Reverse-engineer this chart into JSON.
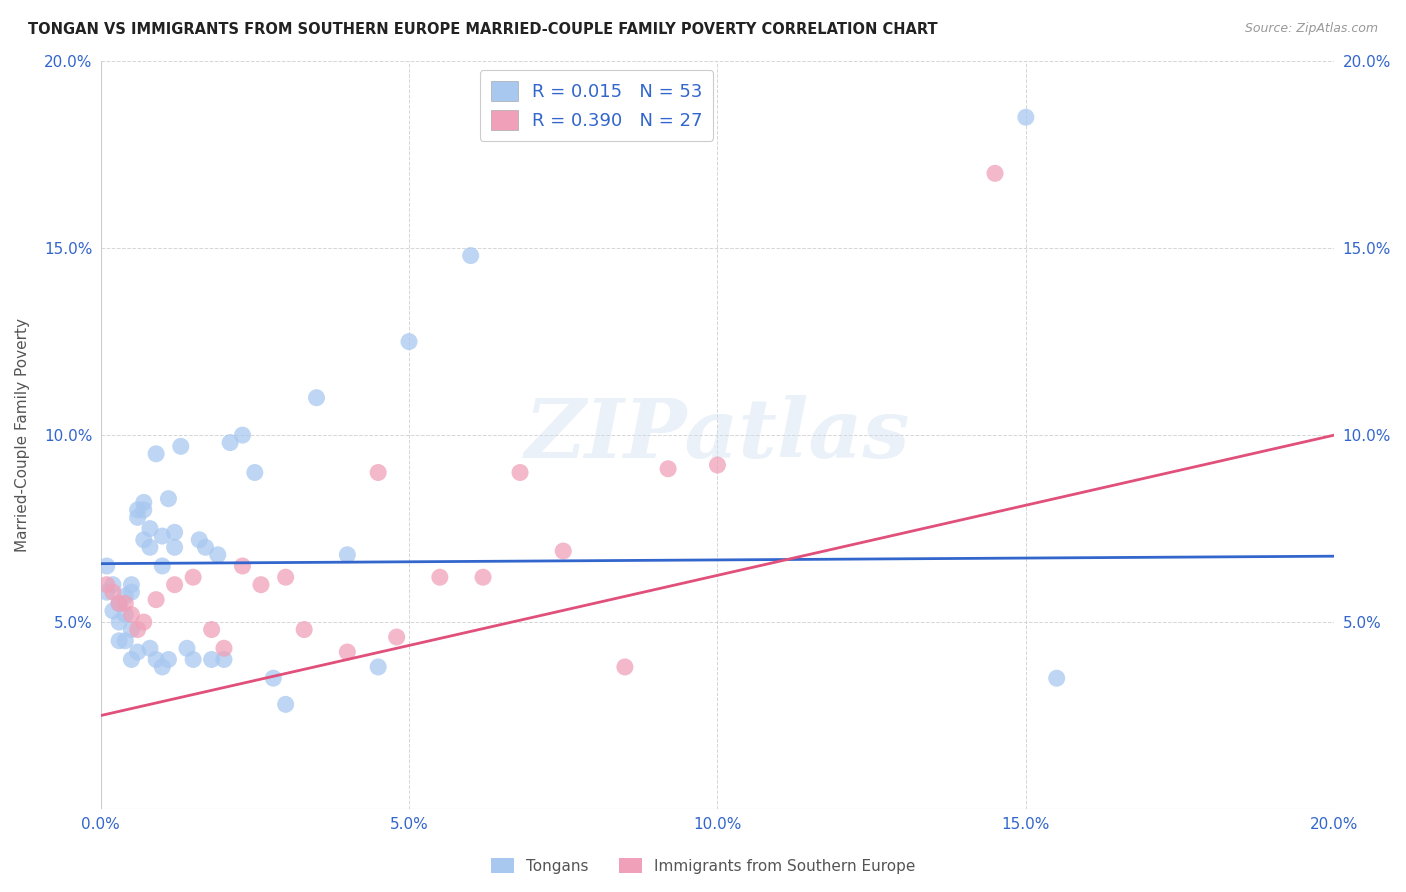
{
  "title": "TONGAN VS IMMIGRANTS FROM SOUTHERN EUROPE MARRIED-COUPLE FAMILY POVERTY CORRELATION CHART",
  "source": "Source: ZipAtlas.com",
  "ylabel": "Married-Couple Family Poverty",
  "xlim": [
    0.0,
    0.2
  ],
  "ylim": [
    0.0,
    0.2
  ],
  "xticks": [
    0.0,
    0.05,
    0.1,
    0.15,
    0.2
  ],
  "yticks": [
    0.0,
    0.05,
    0.1,
    0.15,
    0.2
  ],
  "xticklabels": [
    "0.0%",
    "5.0%",
    "10.0%",
    "15.0%",
    "20.0%"
  ],
  "yticklabels": [
    "",
    "5.0%",
    "10.0%",
    "15.0%",
    "20.0%"
  ],
  "right_yticklabels": [
    "",
    "5.0%",
    "10.0%",
    "15.0%",
    "20.0%"
  ],
  "legend_label1": "Tongans",
  "legend_label2": "Immigrants from Southern Europe",
  "R1": "0.015",
  "N1": "53",
  "R2": "0.390",
  "N2": "27",
  "color1": "#A8C8F0",
  "color2": "#F0A0B8",
  "line_color1": "#3366CC",
  "line_color2": "#E0507A",
  "label_color": "#3366CC",
  "watermark_text": "ZIPatlas",
  "background_color": "#ffffff",
  "tongans_x": [
    0.001,
    0.001,
    0.002,
    0.002,
    0.003,
    0.003,
    0.003,
    0.003,
    0.004,
    0.004,
    0.004,
    0.005,
    0.005,
    0.005,
    0.005,
    0.006,
    0.006,
    0.006,
    0.007,
    0.007,
    0.007,
    0.008,
    0.008,
    0.008,
    0.009,
    0.009,
    0.01,
    0.01,
    0.01,
    0.011,
    0.011,
    0.012,
    0.012,
    0.013,
    0.014,
    0.015,
    0.016,
    0.017,
    0.018,
    0.019,
    0.02,
    0.021,
    0.023,
    0.025,
    0.028,
    0.03,
    0.035,
    0.04,
    0.045,
    0.05,
    0.06,
    0.15,
    0.155
  ],
  "tongans_y": [
    0.065,
    0.058,
    0.06,
    0.053,
    0.055,
    0.055,
    0.05,
    0.045,
    0.057,
    0.052,
    0.045,
    0.06,
    0.058,
    0.048,
    0.04,
    0.08,
    0.078,
    0.042,
    0.082,
    0.08,
    0.072,
    0.075,
    0.07,
    0.043,
    0.095,
    0.04,
    0.073,
    0.065,
    0.038,
    0.083,
    0.04,
    0.074,
    0.07,
    0.097,
    0.043,
    0.04,
    0.072,
    0.07,
    0.04,
    0.068,
    0.04,
    0.098,
    0.1,
    0.09,
    0.035,
    0.028,
    0.11,
    0.068,
    0.038,
    0.125,
    0.148,
    0.185,
    0.035
  ],
  "southern_eu_x": [
    0.001,
    0.002,
    0.003,
    0.004,
    0.005,
    0.006,
    0.007,
    0.009,
    0.012,
    0.015,
    0.018,
    0.02,
    0.023,
    0.026,
    0.03,
    0.033,
    0.04,
    0.045,
    0.048,
    0.055,
    0.062,
    0.068,
    0.075,
    0.085,
    0.092,
    0.1,
    0.145
  ],
  "southern_eu_y": [
    0.06,
    0.058,
    0.055,
    0.055,
    0.052,
    0.048,
    0.05,
    0.056,
    0.06,
    0.062,
    0.048,
    0.043,
    0.065,
    0.06,
    0.062,
    0.048,
    0.042,
    0.09,
    0.046,
    0.062,
    0.062,
    0.09,
    0.069,
    0.038,
    0.091,
    0.092,
    0.17
  ]
}
